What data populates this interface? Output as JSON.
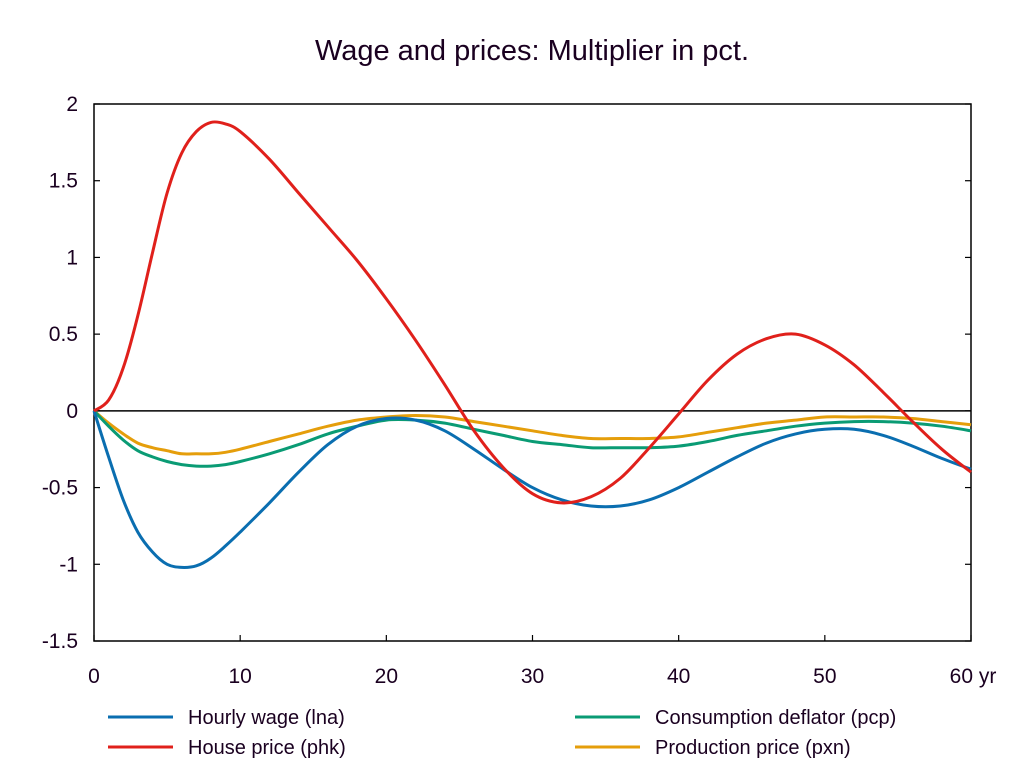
{
  "chart_data": {
    "type": "line",
    "title": "Wage and prices: Multiplier in pct.",
    "xlabel": "",
    "x_unit_label": "yr",
    "ylabel": "",
    "xlim": [
      0,
      60
    ],
    "ylim": [
      -1.5,
      2
    ],
    "xticks": [
      0,
      10,
      20,
      30,
      40,
      50,
      60
    ],
    "xtick_labels": [
      "0",
      "10",
      "20",
      "30",
      "40",
      "50",
      "60 yr"
    ],
    "yticks": [
      2,
      1.5,
      1,
      0.5,
      0,
      -0.5,
      -1,
      -1.5
    ],
    "ytick_labels": [
      "2",
      "1.5",
      "1",
      "0.5",
      "0",
      "-0.5",
      "-1",
      "-1.5"
    ],
    "grid": false,
    "zero_line": true,
    "legend_placement": "bottom",
    "x": [
      0,
      1,
      2,
      3,
      4,
      5,
      6,
      7,
      8,
      9,
      10,
      12,
      14,
      16,
      18,
      20,
      22,
      24,
      26,
      28,
      30,
      32,
      34,
      36,
      38,
      40,
      42,
      44,
      46,
      48,
      50,
      52,
      54,
      56,
      58,
      60
    ],
    "series": [
      {
        "name": "Hourly wage (lna)",
        "color": "#0a6eb0",
        "values": [
          0,
          -0.3,
          -0.58,
          -0.79,
          -0.92,
          -1.0,
          -1.02,
          -1.01,
          -0.96,
          -0.88,
          -0.79,
          -0.6,
          -0.4,
          -0.22,
          -0.1,
          -0.05,
          -0.06,
          -0.13,
          -0.25,
          -0.38,
          -0.5,
          -0.58,
          -0.62,
          -0.62,
          -0.58,
          -0.5,
          -0.4,
          -0.3,
          -0.21,
          -0.15,
          -0.12,
          -0.12,
          -0.16,
          -0.23,
          -0.31,
          -0.38
        ]
      },
      {
        "name": "House price (phk)",
        "color": "#e0201b",
        "values": [
          0,
          0.07,
          0.28,
          0.62,
          1.03,
          1.42,
          1.68,
          1.82,
          1.88,
          1.87,
          1.82,
          1.64,
          1.42,
          1.2,
          0.98,
          0.73,
          0.46,
          0.17,
          -0.13,
          -0.37,
          -0.54,
          -0.6,
          -0.56,
          -0.44,
          -0.24,
          -0.02,
          0.2,
          0.37,
          0.47,
          0.5,
          0.43,
          0.3,
          0.12,
          -0.07,
          -0.25,
          -0.4
        ]
      },
      {
        "name": "Consumption deflator (pcp)",
        "color": "#0a9b74",
        "values": [
          0,
          -0.1,
          -0.19,
          -0.26,
          -0.3,
          -0.33,
          -0.35,
          -0.36,
          -0.36,
          -0.35,
          -0.33,
          -0.28,
          -0.22,
          -0.15,
          -0.1,
          -0.06,
          -0.06,
          -0.08,
          -0.12,
          -0.16,
          -0.2,
          -0.22,
          -0.24,
          -0.24,
          -0.24,
          -0.23,
          -0.2,
          -0.16,
          -0.13,
          -0.1,
          -0.08,
          -0.07,
          -0.07,
          -0.08,
          -0.1,
          -0.13
        ]
      },
      {
        "name": "Production price (pxn)",
        "color": "#e59e0b",
        "values": [
          0,
          -0.08,
          -0.15,
          -0.21,
          -0.24,
          -0.26,
          -0.28,
          -0.28,
          -0.28,
          -0.27,
          -0.25,
          -0.2,
          -0.15,
          -0.1,
          -0.06,
          -0.04,
          -0.03,
          -0.04,
          -0.07,
          -0.1,
          -0.13,
          -0.16,
          -0.18,
          -0.18,
          -0.18,
          -0.17,
          -0.14,
          -0.11,
          -0.08,
          -0.06,
          -0.04,
          -0.04,
          -0.04,
          -0.05,
          -0.07,
          -0.09
        ]
      }
    ]
  }
}
